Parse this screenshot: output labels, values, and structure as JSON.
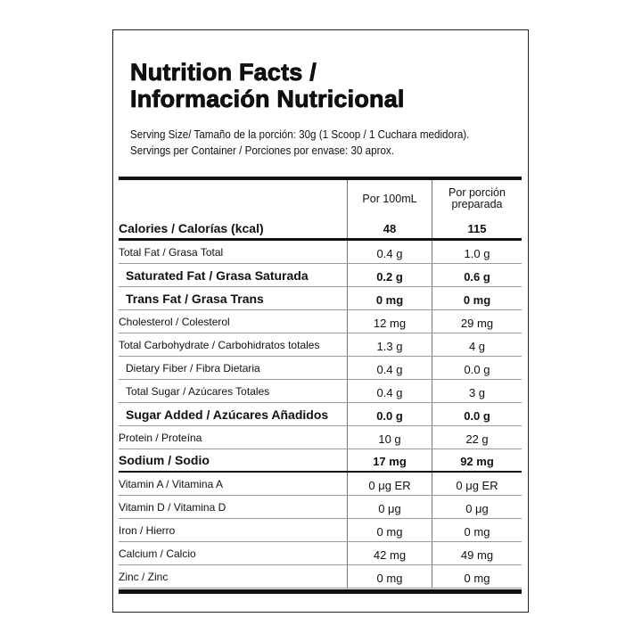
{
  "title_line1": "Nutrition Facts /",
  "title_line2": "Información Nutricional",
  "serving_size": "Serving Size/ Tamaño de la porción: 30g  (1 Scoop / 1 Cuchara medidora).",
  "servings_per_container": "Servings per Container / Porciones por envase: 30 aprox.",
  "columns": [
    "Por 100mL",
    "Por porción preparada"
  ],
  "rows": [
    {
      "label": "Calories / Calorías (kcal)",
      "v1": "48",
      "v2": "115",
      "style": "b cal"
    },
    {
      "label": "Total Fat / Grasa Total",
      "v1": "0.4 g",
      "v2": "1.0 g",
      "style": ""
    },
    {
      "label": "Saturated Fat / Grasa Saturada",
      "v1": "0.2 g",
      "v2": "0.6 g",
      "style": "b ind"
    },
    {
      "label": "Trans Fat / Grasa Trans",
      "v1": "0 mg",
      "v2": "0 mg",
      "style": "b ind"
    },
    {
      "label": "Cholesterol / Colesterol",
      "v1": "12 mg",
      "v2": "29 mg",
      "style": ""
    },
    {
      "label": "Total Carbohydrate / Carbohidratos totales",
      "v1": "1.3 g",
      "v2": "4 g",
      "style": ""
    },
    {
      "label": "Dietary Fiber / Fibra Dietaria",
      "v1": "0.4 g",
      "v2": "0.0 g",
      "style": "ind"
    },
    {
      "label": "Total Sugar / Azúcares Totales",
      "v1": "0.4 g",
      "v2": "3 g",
      "style": "ind"
    },
    {
      "label": "Sugar Added / Azúcares Añadidos",
      "v1": "0.0 g",
      "v2": "0.0 g",
      "style": "b ind"
    },
    {
      "label": "Protein / Proteína",
      "v1": "10 g",
      "v2": "22 g",
      "style": ""
    },
    {
      "label": "Sodium / Sodio",
      "v1": "17 mg",
      "v2": "92 mg",
      "style": "b sod"
    },
    {
      "label": "Vitamin A / Vitamina A",
      "v1": "0 μg ER",
      "v2": "0 μg ER",
      "style": ""
    },
    {
      "label": "Vitamin D / Vitamina D",
      "v1": "0 μg",
      "v2": "0 μg",
      "style": ""
    },
    {
      "label": "Iron / Hierro",
      "v1": "0 mg",
      "v2": "0 mg",
      "style": ""
    },
    {
      "label": "Calcium / Calcio",
      "v1": "42 mg",
      "v2": "49 mg",
      "style": ""
    },
    {
      "label": "Zinc / Zinc",
      "v1": "0 mg",
      "v2": "0 mg",
      "style": ""
    }
  ]
}
